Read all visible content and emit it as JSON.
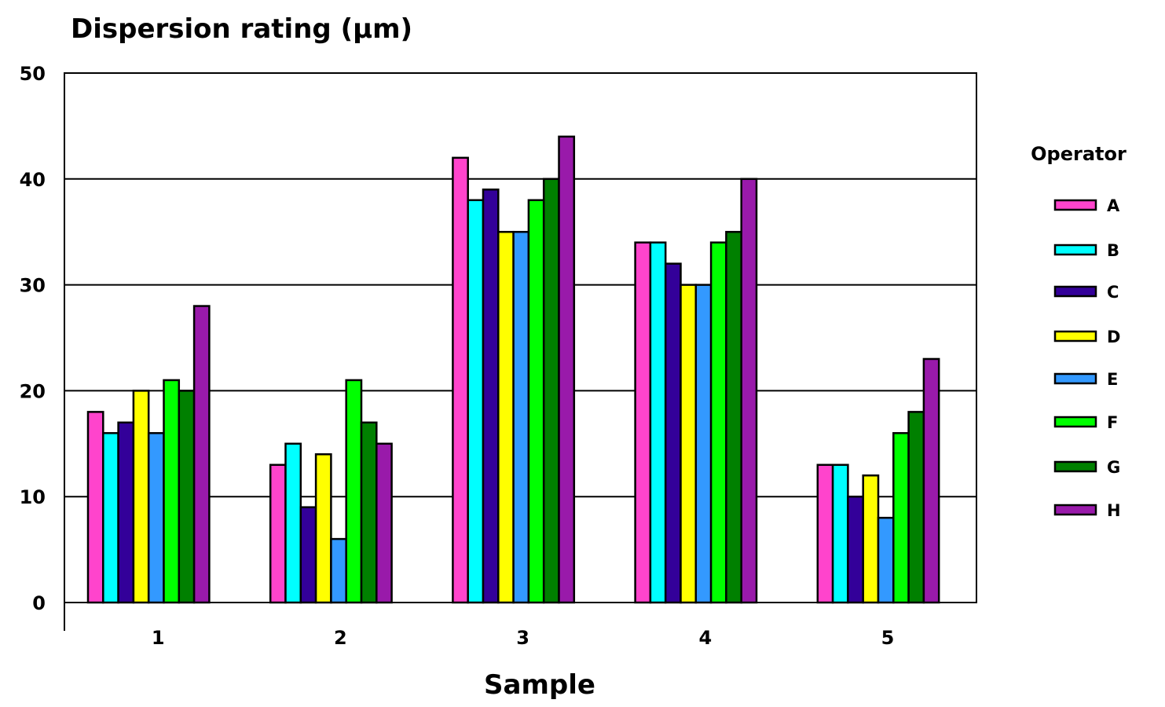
{
  "chart_data": {
    "type": "bar",
    "title": "Dispersion rating (µm)",
    "xlabel": "Sample",
    "ylabel": "",
    "ylim": [
      0,
      50
    ],
    "yticks": [
      0,
      10,
      20,
      30,
      40,
      50
    ],
    "grid": true,
    "legend_title": "Operator",
    "legend_position": "right",
    "categories": [
      "1",
      "2",
      "3",
      "4",
      "5"
    ],
    "series": [
      {
        "name": "A",
        "color": "#ff44cc",
        "values": [
          18,
          13,
          42,
          34,
          13
        ]
      },
      {
        "name": "B",
        "color": "#00ffff",
        "values": [
          16,
          15,
          38,
          34,
          13
        ]
      },
      {
        "name": "C",
        "color": "#330099",
        "values": [
          17,
          9,
          39,
          32,
          10
        ]
      },
      {
        "name": "D",
        "color": "#ffff00",
        "values": [
          20,
          14,
          35,
          30,
          12
        ]
      },
      {
        "name": "E",
        "color": "#3399ff",
        "values": [
          16,
          6,
          35,
          30,
          8
        ]
      },
      {
        "name": "F",
        "color": "#00ff00",
        "values": [
          21,
          21,
          38,
          34,
          16
        ]
      },
      {
        "name": "G",
        "color": "#008000",
        "values": [
          20,
          17,
          40,
          35,
          18
        ]
      },
      {
        "name": "H",
        "color": "#991aaa",
        "values": [
          28,
          15,
          44,
          40,
          23
        ]
      }
    ]
  }
}
